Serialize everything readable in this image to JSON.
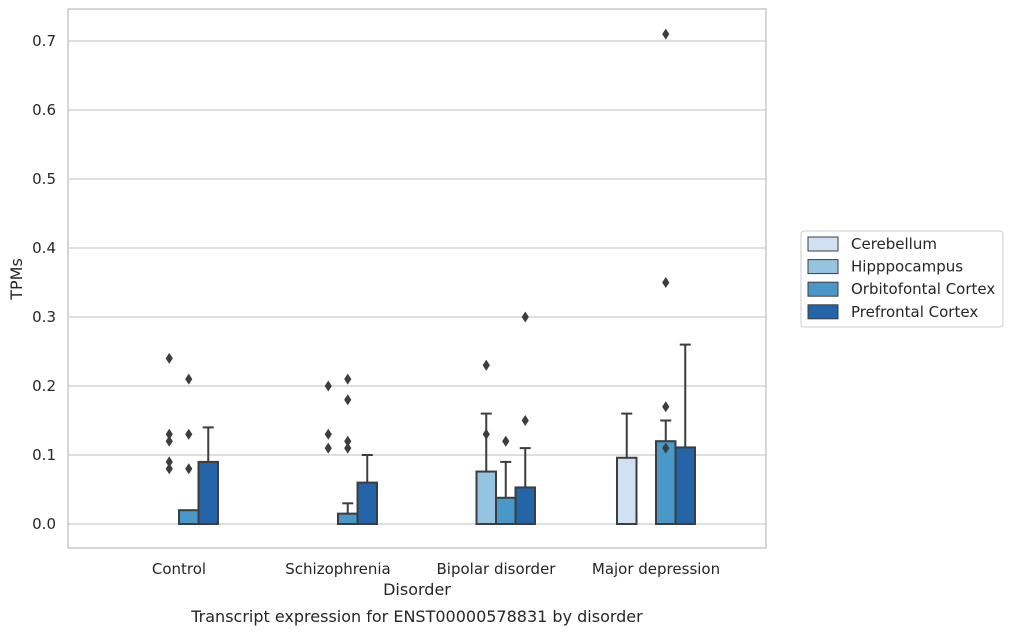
{
  "chart_data": {
    "type": "bar",
    "caption": "Transcript expression for ENST00000578831 by disorder",
    "xlabel": "Disorder",
    "ylabel": "TPMs",
    "ylim": [
      -0.035,
      0.745
    ],
    "yticks": [
      0.0,
      0.1,
      0.2,
      0.3,
      0.4,
      0.5,
      0.6,
      0.7
    ],
    "ytick_labels": [
      "0.0",
      "0.1",
      "0.2",
      "0.3",
      "0.4",
      "0.5",
      "0.6",
      "0.7"
    ],
    "grid": "horizontal",
    "legend_position": "right",
    "categories": [
      "Control",
      "Schizophrenia",
      "Bipolar disorder",
      "Major depression"
    ],
    "series": [
      {
        "name": "Cerebellum",
        "color": "#d0e1f2",
        "values": [
          0.0,
          0.0,
          0.0,
          0.096
        ],
        "err_upper": [
          null,
          null,
          null,
          0.16
        ],
        "outliers": [
          [],
          [],
          [],
          []
        ]
      },
      {
        "name": "Hipppocampus",
        "color": "#94c4df",
        "values": [
          0.0,
          0.0,
          0.076,
          0.0
        ],
        "err_upper": [
          null,
          null,
          0.16,
          null
        ],
        "outliers": [
          [
            0.09,
            0.08,
            0.24,
            0.13,
            0.12
          ],
          [
            0.2,
            0.13,
            0.11
          ],
          [
            0.23,
            0.13
          ],
          []
        ]
      },
      {
        "name": "Orbitofontal Cortex",
        "color": "#4a98c9",
        "values": [
          0.02,
          0.015,
          0.038,
          0.12
        ],
        "err_upper": [
          null,
          0.03,
          0.09,
          0.15
        ],
        "outliers": [
          [
            0.21,
            0.13,
            0.08
          ],
          [
            0.12,
            0.11,
            0.21,
            0.18
          ],
          [
            0.12
          ],
          [
            0.17,
            0.11,
            0.71,
            0.35
          ]
        ]
      },
      {
        "name": "Prefrontal Cortex",
        "color": "#2464a8",
        "values": [
          0.09,
          0.06,
          0.053,
          0.111
        ],
        "err_upper": [
          0.14,
          0.1,
          0.11,
          0.26
        ],
        "outliers": [
          [],
          [],
          [
            0.3,
            0.15
          ],
          []
        ]
      }
    ]
  }
}
